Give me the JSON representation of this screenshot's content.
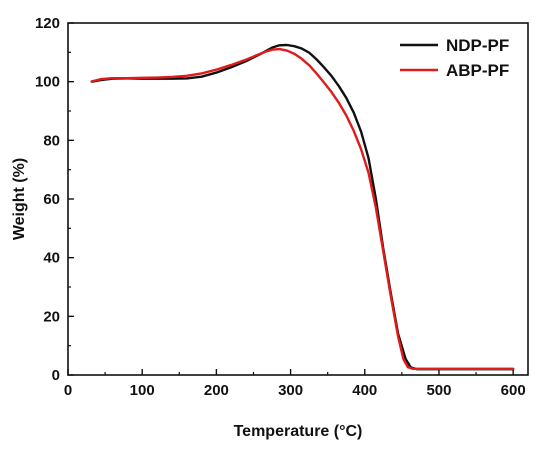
{
  "chart_data": {
    "type": "line",
    "xlabel": "Temperature (°C)",
    "ylabel": "Weight (%)",
    "xlim": [
      0,
      620
    ],
    "ylim": [
      0,
      120
    ],
    "xticks": [
      0,
      100,
      200,
      300,
      400,
      500,
      600
    ],
    "yticks": [
      0,
      20,
      40,
      60,
      80,
      100,
      120
    ],
    "grid": false,
    "legend_position": "top-right",
    "series": [
      {
        "name": "NDP-PF",
        "color": "#111111",
        "points": [
          [
            32,
            100.0
          ],
          [
            45,
            100.6
          ],
          [
            60,
            101.0
          ],
          [
            80,
            101.1
          ],
          [
            100,
            101.0
          ],
          [
            120,
            101.0
          ],
          [
            140,
            101.0
          ],
          [
            160,
            101.1
          ],
          [
            180,
            101.7
          ],
          [
            200,
            103.1
          ],
          [
            220,
            104.9
          ],
          [
            240,
            107.0
          ],
          [
            260,
            109.5
          ],
          [
            275,
            111.6
          ],
          [
            285,
            112.4
          ],
          [
            295,
            112.5
          ],
          [
            305,
            112.1
          ],
          [
            315,
            111.3
          ],
          [
            325,
            109.9
          ],
          [
            335,
            107.6
          ],
          [
            345,
            104.9
          ],
          [
            355,
            102.0
          ],
          [
            365,
            98.5
          ],
          [
            375,
            94.5
          ],
          [
            385,
            89.5
          ],
          [
            395,
            83.0
          ],
          [
            405,
            74.0
          ],
          [
            415,
            60.0
          ],
          [
            425,
            43.0
          ],
          [
            435,
            28.0
          ],
          [
            445,
            14.0
          ],
          [
            455,
            5.5
          ],
          [
            462,
            2.6
          ],
          [
            470,
            2.0
          ],
          [
            490,
            2.0
          ],
          [
            520,
            2.0
          ],
          [
            560,
            2.0
          ],
          [
            600,
            2.0
          ]
        ]
      },
      {
        "name": "ABP-PF",
        "color": "#e01b1b",
        "points": [
          [
            32,
            100.1
          ],
          [
            45,
            100.9
          ],
          [
            60,
            101.2
          ],
          [
            80,
            101.2
          ],
          [
            100,
            101.3
          ],
          [
            120,
            101.4
          ],
          [
            140,
            101.6
          ],
          [
            160,
            102.0
          ],
          [
            180,
            102.8
          ],
          [
            200,
            104.1
          ],
          [
            220,
            105.7
          ],
          [
            240,
            107.5
          ],
          [
            255,
            109.1
          ],
          [
            265,
            110.1
          ],
          [
            275,
            110.9
          ],
          [
            285,
            111.1
          ],
          [
            295,
            110.6
          ],
          [
            305,
            109.5
          ],
          [
            315,
            107.8
          ],
          [
            325,
            105.6
          ],
          [
            335,
            102.8
          ],
          [
            345,
            99.7
          ],
          [
            355,
            96.5
          ],
          [
            365,
            92.8
          ],
          [
            375,
            88.5
          ],
          [
            385,
            83.3
          ],
          [
            395,
            77.0
          ],
          [
            405,
            69.0
          ],
          [
            415,
            57.0
          ],
          [
            425,
            42.0
          ],
          [
            435,
            27.0
          ],
          [
            445,
            13.0
          ],
          [
            452,
            5.5
          ],
          [
            458,
            2.7
          ],
          [
            465,
            2.1
          ],
          [
            490,
            2.1
          ],
          [
            520,
            2.1
          ],
          [
            560,
            2.1
          ],
          [
            600,
            2.1
          ]
        ]
      }
    ]
  }
}
